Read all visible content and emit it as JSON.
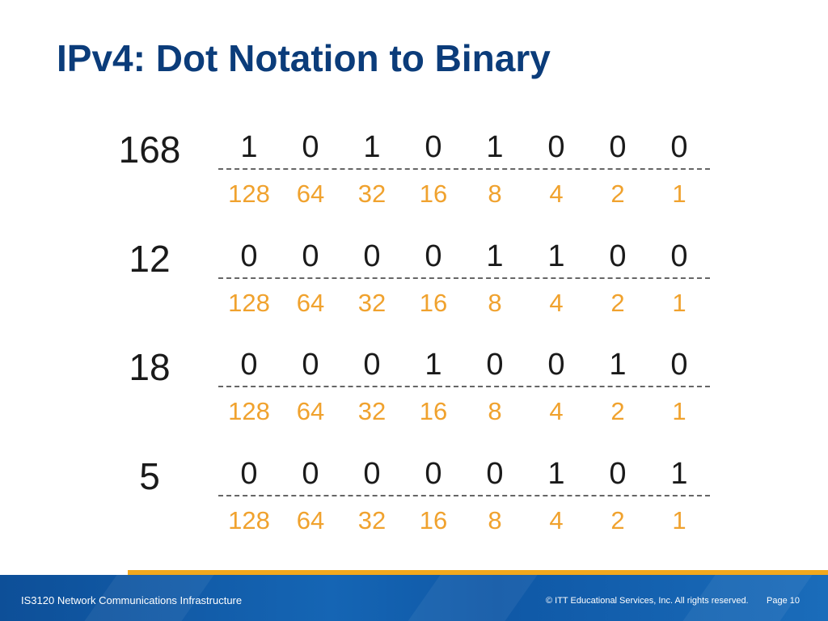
{
  "title": "IPv4: Dot Notation to Binary",
  "rows": [
    {
      "decimal": "168",
      "bits": [
        "1",
        "0",
        "1",
        "0",
        "1",
        "0",
        "0",
        "0"
      ],
      "weights": [
        "128",
        "64",
        "32",
        "16",
        "8",
        "4",
        "2",
        "1"
      ]
    },
    {
      "decimal": "12",
      "bits": [
        "0",
        "0",
        "0",
        "0",
        "1",
        "1",
        "0",
        "0"
      ],
      "weights": [
        "128",
        "64",
        "32",
        "16",
        "8",
        "4",
        "2",
        "1"
      ]
    },
    {
      "decimal": "18",
      "bits": [
        "0",
        "0",
        "0",
        "1",
        "0",
        "0",
        "1",
        "0"
      ],
      "weights": [
        "128",
        "64",
        "32",
        "16",
        "8",
        "4",
        "2",
        "1"
      ]
    },
    {
      "decimal": "5",
      "bits": [
        "0",
        "0",
        "0",
        "0",
        "0",
        "1",
        "0",
        "1"
      ],
      "weights": [
        "128",
        "64",
        "32",
        "16",
        "8",
        "4",
        "2",
        "1"
      ]
    }
  ],
  "footer": {
    "course": "IS3120 Network Communications Infrastructure",
    "copyright": "© ITT Educational Services, Inc. All rights reserved.",
    "page": "Page 10"
  },
  "colors": {
    "title": "#0b3c7a",
    "bit_text": "#1a1a1a",
    "weight_text": "#f0a22e",
    "footer_band": "#1565b4",
    "footer_accent": "#f2a81d"
  }
}
